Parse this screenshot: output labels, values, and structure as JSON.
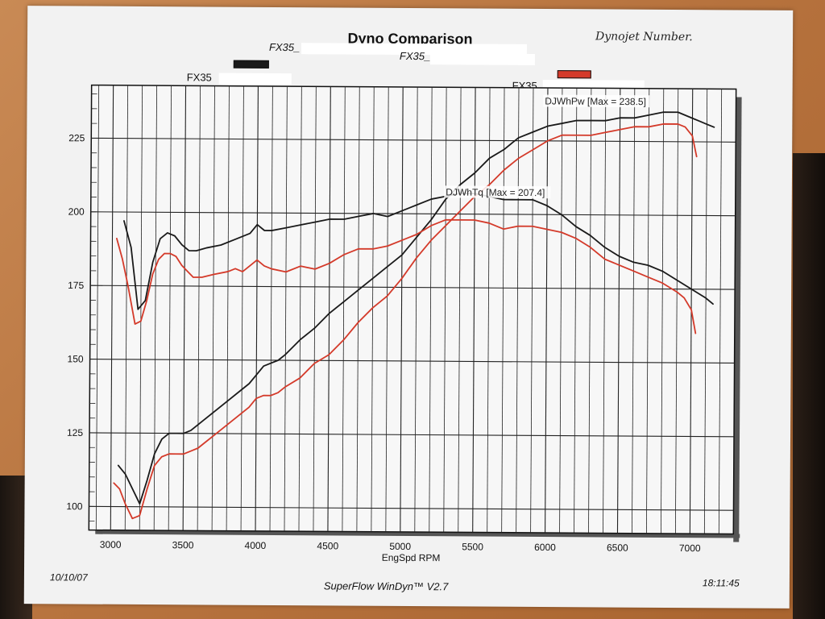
{
  "chart_data": {
    "type": "line",
    "title": "Dyno Comparison",
    "xlabel": "EngSpd  RPM",
    "ylabel": "",
    "xlim": [
      2850,
      7300
    ],
    "ylim": [
      92,
      243
    ],
    "x_ticks": [
      3000,
      3500,
      4000,
      4500,
      5000,
      5500,
      6000,
      6500,
      7000
    ],
    "y_ticks": [
      100,
      125,
      150,
      175,
      200,
      225
    ],
    "grid": true,
    "series": [
      {
        "name": "",
        "color": "#1a1a1a",
        "x": [
          3050,
          3100,
          3150,
          3200,
          3250,
          3300,
          3350,
          3400,
          3450,
          3500,
          3550,
          3600,
          3650,
          3700,
          3800,
          3900,
          3950,
          4000,
          4050,
          4100,
          4150,
          4200,
          4300,
          4400,
          4500,
          4600,
          4700,
          4800,
          4900,
          5000,
          5100,
          5200,
          5300,
          5400,
          5500,
          5600,
          5700,
          5800,
          5900,
          6000,
          6100,
          6200,
          6300,
          6400,
          6500,
          6600,
          6700,
          6800,
          6900,
          7000,
          7050,
          7100,
          7150
        ],
        "y": [
          114,
          111,
          106,
          101,
          109,
          118,
          123,
          125,
          125,
          125,
          126,
          128,
          130,
          132,
          136,
          140,
          142,
          145,
          148,
          149,
          150,
          152,
          157,
          161,
          166,
          170,
          174,
          178,
          182,
          186,
          192,
          198,
          205,
          210,
          214,
          219,
          222,
          226,
          228,
          230,
          231,
          232,
          232,
          232,
          233,
          233,
          234,
          235,
          235,
          233,
          232,
          231,
          230
        ]
      },
      {
        "name": "",
        "color": "#d43a2a",
        "x": [
          3020,
          3060,
          3100,
          3150,
          3200,
          3250,
          3300,
          3350,
          3400,
          3450,
          3500,
          3550,
          3600,
          3650,
          3700,
          3800,
          3900,
          3950,
          4000,
          4050,
          4100,
          4150,
          4200,
          4300,
          4400,
          4500,
          4600,
          4700,
          4800,
          4900,
          5000,
          5100,
          5200,
          5300,
          5400,
          5500,
          5600,
          5700,
          5800,
          5900,
          6000,
          6100,
          6200,
          6300,
          6400,
          6500,
          6600,
          6700,
          6800,
          6900,
          6950,
          7000,
          7030
        ],
        "y": [
          108,
          106,
          101,
          96,
          97,
          106,
          114,
          117,
          118,
          118,
          118,
          119,
          120,
          122,
          124,
          128,
          132,
          134,
          137,
          138,
          138,
          139,
          141,
          144,
          149,
          152,
          157,
          163,
          168,
          172,
          178,
          185,
          191,
          196,
          201,
          206,
          210,
          215,
          219,
          222,
          225,
          227,
          227,
          227,
          228,
          229,
          230,
          230,
          231,
          231,
          230,
          227,
          220
        ]
      },
      {
        "name": "",
        "color": "#1a1a1a",
        "x": [
          3080,
          3130,
          3180,
          3230,
          3280,
          3330,
          3380,
          3430,
          3480,
          3530,
          3580,
          3650,
          3750,
          3850,
          3950,
          4000,
          4050,
          4100,
          4200,
          4300,
          4400,
          4500,
          4600,
          4700,
          4800,
          4900,
          5000,
          5100,
          5200,
          5300,
          5400,
          5500,
          5600,
          5700,
          5800,
          5900,
          6000,
          6100,
          6200,
          6300,
          6400,
          6500,
          6600,
          6700,
          6800,
          6900,
          7000,
          7100,
          7150
        ],
        "y": [
          197,
          188,
          167,
          170,
          183,
          191,
          193,
          192,
          189,
          187,
          187,
          188,
          189,
          191,
          193,
          196,
          194,
          194,
          195,
          196,
          197,
          198,
          198,
          199,
          200,
          199,
          201,
          203,
          205,
          206,
          207,
          207,
          206,
          205,
          205,
          205,
          203,
          200,
          196,
          193,
          189,
          186,
          184,
          183,
          181,
          178,
          175,
          172,
          170
        ]
      },
      {
        "name": "",
        "color": "#d43a2a",
        "x": [
          3030,
          3070,
          3110,
          3160,
          3200,
          3240,
          3280,
          3320,
          3360,
          3400,
          3440,
          3480,
          3520,
          3560,
          3620,
          3700,
          3800,
          3850,
          3900,
          3950,
          4000,
          4050,
          4100,
          4200,
          4300,
          4400,
          4500,
          4600,
          4700,
          4800,
          4900,
          5000,
          5100,
          5200,
          5300,
          5400,
          5500,
          5600,
          5700,
          5800,
          5900,
          6000,
          6100,
          6200,
          6300,
          6400,
          6500,
          6600,
          6700,
          6800,
          6900,
          6950,
          7000,
          7030
        ],
        "y": [
          191,
          184,
          175,
          162,
          163,
          170,
          179,
          184,
          186,
          186,
          185,
          182,
          180,
          178,
          178,
          179,
          180,
          181,
          180,
          182,
          184,
          182,
          181,
          180,
          182,
          181,
          183,
          186,
          188,
          188,
          189,
          191,
          193,
          196,
          198,
          198,
          198,
          197,
          195,
          196,
          196,
          195,
          194,
          192,
          189,
          185,
          183,
          181,
          179,
          177,
          174,
          172,
          168,
          160
        ]
      }
    ],
    "annotations": [
      {
        "text": "DJWhPw [Max = 238.5]"
      },
      {
        "text": "DJWhTq [Max = 207.4]"
      }
    ]
  },
  "legend": {
    "label_a": "FX35_",
    "label_b": "FX35",
    "label_c": "FX35_",
    "label_d": "FX35",
    "swatch_a_color": "#1a1a1a",
    "swatch_b_color": "#d43a2a"
  },
  "header": {
    "handwritten_note": "Dynojet Number."
  },
  "footer": {
    "date": "10/10/07",
    "software": "SuperFlow WinDyn™ V2.7",
    "time": "18:11:45"
  }
}
